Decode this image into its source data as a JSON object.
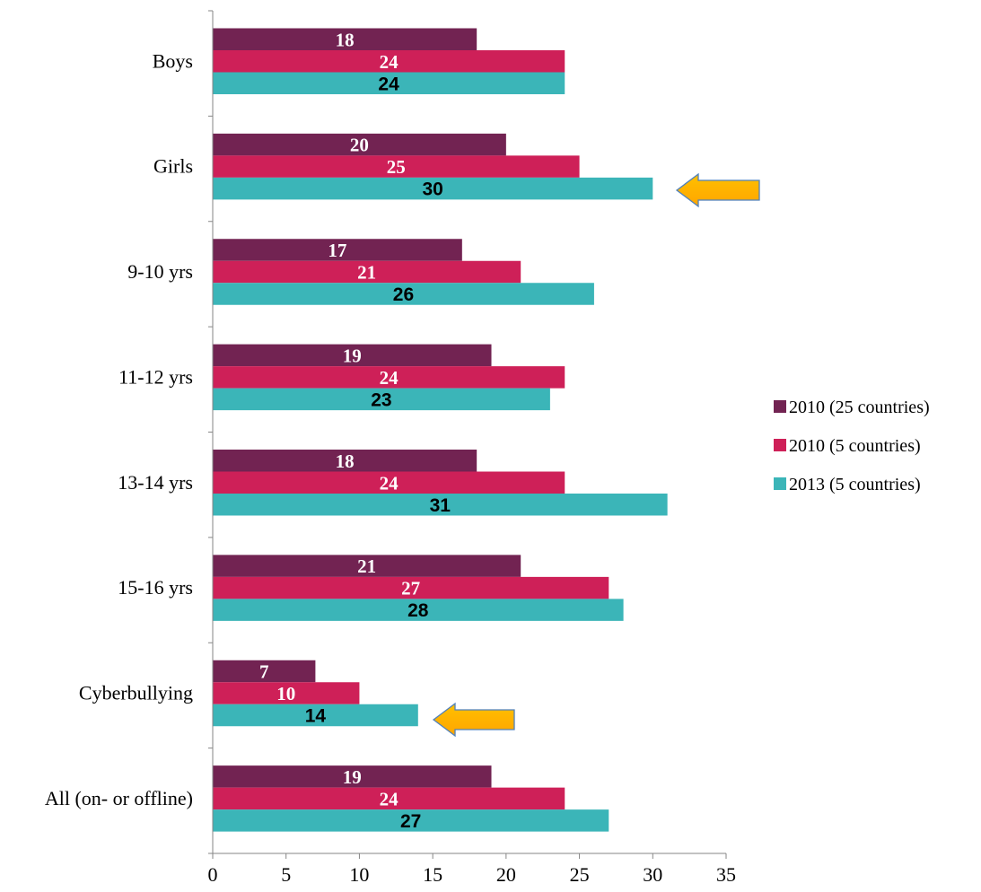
{
  "chart_data": {
    "type": "bar",
    "orientation": "horizontal",
    "categories": [
      "Boys",
      "Girls",
      "9-10 yrs",
      "11-12 yrs",
      "13-14 yrs",
      "15-16 yrs",
      "Cyberbullying",
      "All (on- or offline)"
    ],
    "series": [
      {
        "name": "2010 (25 countries)",
        "color": "#722352",
        "values": [
          18,
          20,
          17,
          19,
          18,
          21,
          7,
          19
        ]
      },
      {
        "name": "2010 (5 countries)",
        "color": "#CE2058",
        "values": [
          24,
          25,
          21,
          24,
          24,
          27,
          10,
          24
        ]
      },
      {
        "name": "2013 (5 countries)",
        "color": "#3BB5B8",
        "values": [
          24,
          30,
          26,
          23,
          31,
          28,
          14,
          27
        ]
      }
    ],
    "xlim": [
      0,
      35
    ],
    "xticks": [
      0,
      5,
      10,
      15,
      20,
      25,
      30,
      35
    ],
    "grid": false,
    "legend_position": "right",
    "data_labels": true,
    "annotations": [
      {
        "type": "arrow",
        "category": "Girls",
        "color": "#FFB000"
      },
      {
        "type": "arrow",
        "category": "Cyberbullying",
        "color": "#FFB000"
      }
    ],
    "title": "",
    "xlabel": "",
    "ylabel": ""
  }
}
